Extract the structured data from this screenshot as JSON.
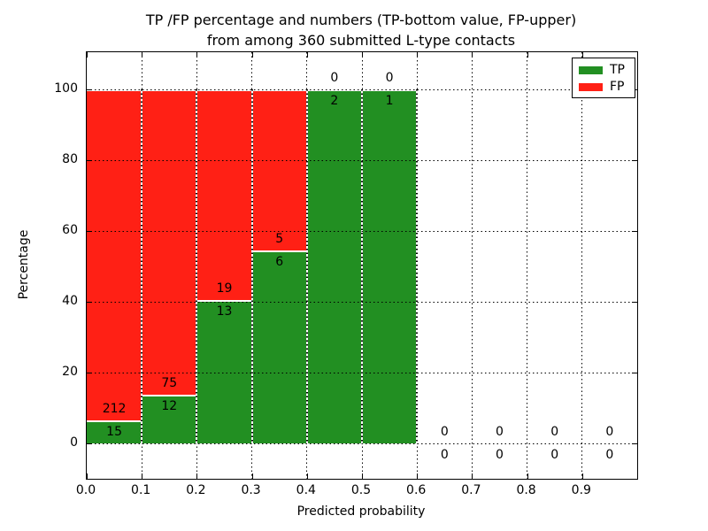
{
  "title": {
    "line1": "TP /FP percentage and numbers (TP-bottom value, FP-upper)",
    "line2": "from among 360 submitted L-type contacts"
  },
  "chart_data": {
    "type": "bar",
    "stacked": true,
    "bar_mode": "percent-stacked",
    "title": "TP /FP percentage and numbers (TP-bottom value, FP-upper) from among 360 submitted L-type contacts",
    "xlabel": "Predicted probability",
    "ylabel": "Percentage",
    "bin_edges": [
      0.0,
      0.1,
      0.2,
      0.3,
      0.4,
      0.5,
      0.6,
      0.7,
      0.8,
      0.9,
      1.0
    ],
    "x_tick_labels": [
      "0.0",
      "0.1",
      "0.2",
      "0.3",
      "0.4",
      "0.5",
      "0.6",
      "0.7",
      "0.8",
      "0.9"
    ],
    "y_tick_values": [
      0,
      20,
      40,
      60,
      80,
      100
    ],
    "y_tick_labels": [
      "0",
      "20",
      "40",
      "60",
      "80",
      "100"
    ],
    "xlim": [
      0.0,
      1.0
    ],
    "ylim": [
      -10,
      110.5
    ],
    "grid": "dotted",
    "total_contacts": 360,
    "series": [
      {
        "name": "TP",
        "color": "#228f22",
        "counts": [
          15,
          12,
          13,
          6,
          2,
          1,
          0,
          0,
          0,
          0
        ]
      },
      {
        "name": "FP",
        "color": "#ff2015",
        "counts": [
          212,
          75,
          19,
          5,
          0,
          0,
          0,
          0,
          0,
          0
        ]
      }
    ],
    "tp_percentages": [
      6.6,
      13.8,
      40.6,
      54.5,
      100,
      100,
      0,
      0,
      0,
      0
    ],
    "legend": {
      "position": "upper-right",
      "entries": [
        {
          "label": "TP",
          "color": "#228f22"
        },
        {
          "label": "FP",
          "color": "#ff2015"
        }
      ]
    }
  },
  "colors": {
    "background": "#ffffff",
    "grid": "#000000",
    "tp": "#228f22",
    "fp": "#ff2015"
  }
}
